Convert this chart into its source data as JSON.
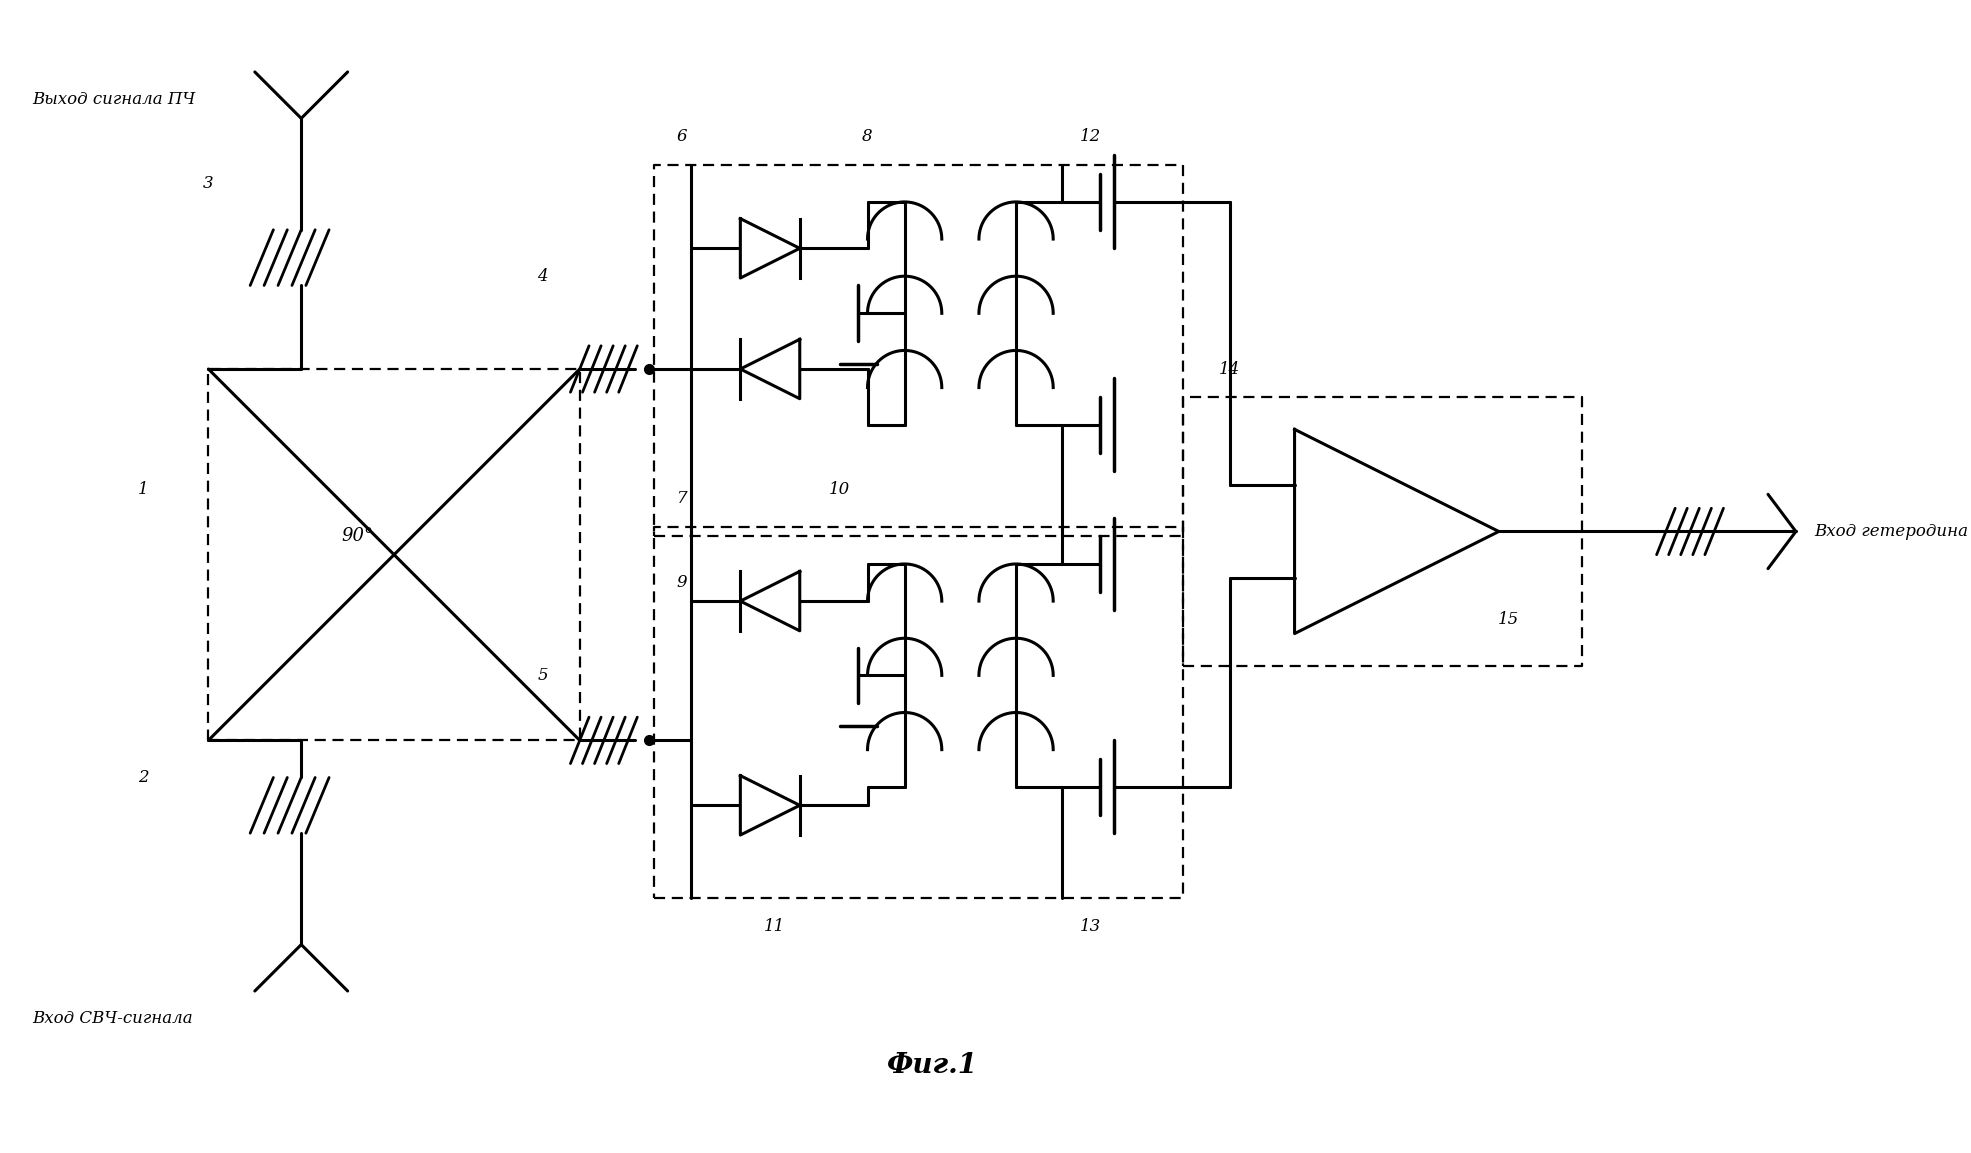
{
  "bg_color": "#ffffff",
  "line_color": "#000000",
  "fig_width": 19.71,
  "fig_height": 11.53,
  "title": "Фиг.1",
  "label_vykhod": "Выход сигнала ПЧ",
  "label_vkhod_svch": "Вход СВЧ-сигнала",
  "label_vkhod_geterodina": "Вход гетеродина",
  "label_90deg": "90°",
  "numbers": [
    "1",
    "2",
    "3",
    "4",
    "5",
    "6",
    "7",
    "8",
    "9",
    "10",
    "11",
    "12",
    "13",
    "14",
    "15"
  ]
}
